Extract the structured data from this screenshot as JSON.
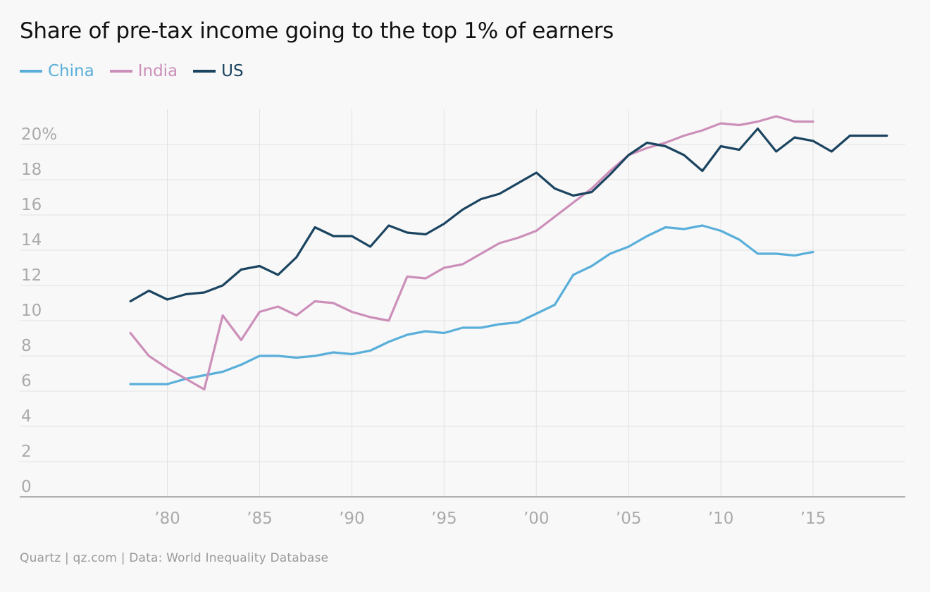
{
  "title": "Share of pre-tax income going to the top 1% of earners",
  "footer": "Quartz | qz.com | Data: World Inequality Database",
  "colors": {
    "China": "#5aafda",
    "India": "#cc8fba",
    "US": "#1b4460",
    "grid": "#e2e2e2",
    "axis": "#999999",
    "tick": "#aaaaaa"
  },
  "chart_data": {
    "type": "line",
    "title": "Share of pre-tax income going to the top 1% of earners",
    "xlabel": "",
    "ylabel": "",
    "xlim": [
      1972,
      2020
    ],
    "ylim": [
      0,
      22
    ],
    "grid": true,
    "legend_position": "top-left",
    "x_ticks": [
      1980,
      1985,
      1990,
      1995,
      2000,
      2005,
      2010,
      2015
    ],
    "x_tick_labels": [
      "’80",
      "’85",
      "’90",
      "’95",
      "’00",
      "’05",
      "’10",
      "’15"
    ],
    "y_ticks": [
      0,
      2,
      4,
      6,
      8,
      10,
      12,
      14,
      16,
      18,
      20
    ],
    "y_tick_labels": [
      "0",
      "2",
      "4",
      "6",
      "8",
      "10",
      "12",
      "14",
      "16",
      "18",
      "20%"
    ],
    "series": [
      {
        "name": "China",
        "x": [
          1978,
          1979,
          1980,
          1981,
          1982,
          1983,
          1984,
          1985,
          1986,
          1987,
          1988,
          1989,
          1990,
          1991,
          1992,
          1993,
          1994,
          1995,
          1996,
          1997,
          1998,
          1999,
          2000,
          2001,
          2002,
          2003,
          2004,
          2005,
          2006,
          2007,
          2008,
          2009,
          2010,
          2011,
          2012,
          2013,
          2014,
          2015
        ],
        "values": [
          6.4,
          6.4,
          6.4,
          6.7,
          6.9,
          7.1,
          7.5,
          8.0,
          8.0,
          7.9,
          8.0,
          8.2,
          8.1,
          8.3,
          8.8,
          9.2,
          9.4,
          9.3,
          9.6,
          9.6,
          9.8,
          9.9,
          10.4,
          10.9,
          12.6,
          13.1,
          13.8,
          14.2,
          14.8,
          15.3,
          15.2,
          15.4,
          15.1,
          14.6,
          13.8,
          13.8,
          13.7,
          13.9
        ]
      },
      {
        "name": "India",
        "x": [
          1978,
          1979,
          1980,
          1981,
          1982,
          1983,
          1984,
          1985,
          1986,
          1987,
          1988,
          1989,
          1990,
          1991,
          1992,
          1993,
          1994,
          1995,
          1996,
          1997,
          1998,
          1999,
          2000,
          2001,
          2002,
          2003,
          2004,
          2005,
          2006,
          2007,
          2008,
          2009,
          2010,
          2011,
          2012,
          2013,
          2014,
          2015
        ],
        "values": [
          9.3,
          8.0,
          7.3,
          6.7,
          6.1,
          10.3,
          8.9,
          10.5,
          10.8,
          10.3,
          11.1,
          11.0,
          10.5,
          10.2,
          10.0,
          12.5,
          12.4,
          13.0,
          13.2,
          13.8,
          14.4,
          14.7,
          15.1,
          15.9,
          16.7,
          17.5,
          18.5,
          19.4,
          19.8,
          20.1,
          20.5,
          20.8,
          21.2,
          21.1,
          21.3,
          21.6,
          21.3,
          21.3
        ]
      },
      {
        "name": "US",
        "x": [
          1978,
          1979,
          1980,
          1981,
          1982,
          1983,
          1984,
          1985,
          1986,
          1987,
          1988,
          1989,
          1990,
          1991,
          1992,
          1993,
          1994,
          1995,
          1996,
          1997,
          1998,
          1999,
          2000,
          2001,
          2002,
          2003,
          2004,
          2005,
          2006,
          2007,
          2008,
          2009,
          2010,
          2011,
          2012,
          2013,
          2014,
          2015,
          2016,
          2017,
          2018,
          2019
        ],
        "values": [
          11.1,
          11.7,
          11.2,
          11.5,
          11.6,
          12.0,
          12.9,
          13.1,
          12.6,
          13.6,
          15.3,
          14.8,
          14.8,
          14.2,
          15.4,
          15.0,
          14.9,
          15.5,
          16.3,
          16.9,
          17.2,
          17.8,
          18.4,
          17.5,
          17.1,
          17.3,
          18.3,
          19.4,
          20.1,
          19.9,
          19.4,
          18.5,
          19.9,
          19.7,
          20.9,
          19.6,
          20.4,
          20.2,
          19.6,
          20.5,
          20.5,
          20.5
        ]
      }
    ]
  }
}
